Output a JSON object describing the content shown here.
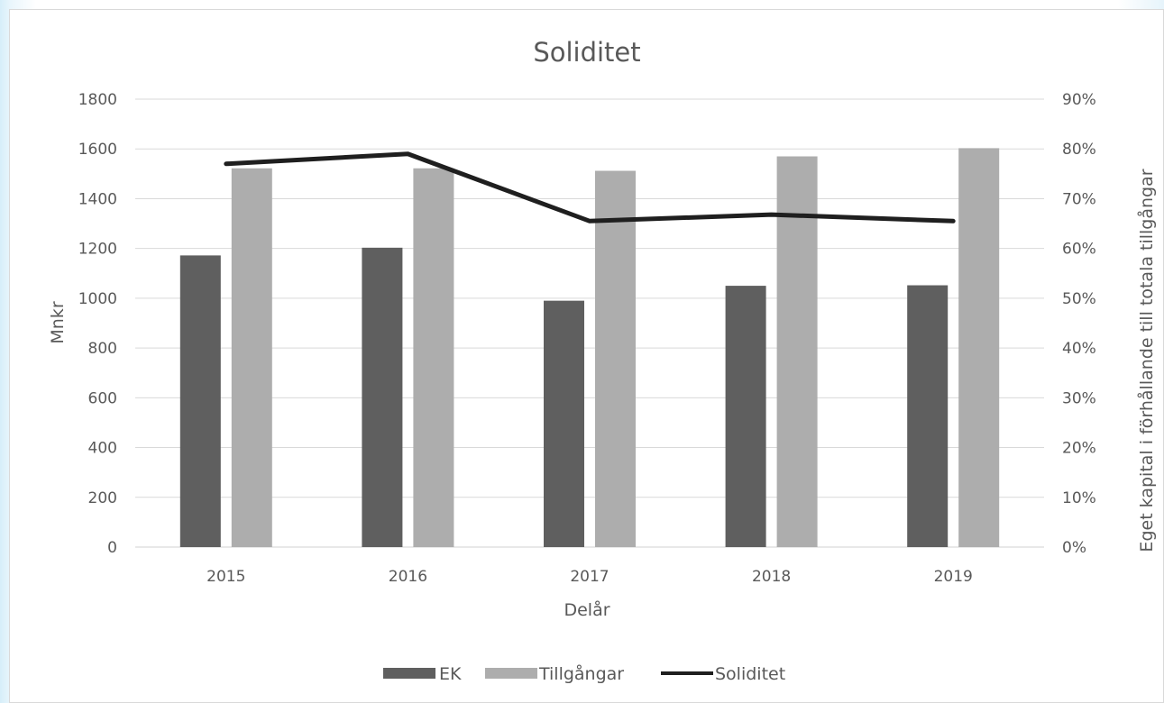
{
  "chart_data": {
    "type": "bar",
    "title": "Soliditet",
    "xlabel": "Delår",
    "ylabel": "Mnkr",
    "y2label": "Eget kapital i förhållande till totala tillgångar",
    "categories": [
      "2015",
      "2016",
      "2017",
      "2018",
      "2019"
    ],
    "ylim": [
      0,
      1800
    ],
    "yticks": [
      "0",
      "200",
      "400",
      "600",
      "800",
      "1000",
      "1200",
      "1400",
      "1600",
      "1800"
    ],
    "y2lim": [
      0,
      0.9
    ],
    "y2ticks": [
      "0%",
      "10%",
      "20%",
      "30%",
      "40%",
      "50%",
      "60%",
      "70%",
      "80%",
      "90%"
    ],
    "series": [
      {
        "name": "EK",
        "type": "bar",
        "axis": "left",
        "color": "#5f5f5f",
        "values": [
          1172,
          1203,
          990,
          1050,
          1052
        ]
      },
      {
        "name": "Tillgångar",
        "type": "bar",
        "axis": "left",
        "color": "#adadad",
        "values": [
          1522,
          1522,
          1512,
          1570,
          1603
        ]
      },
      {
        "name": "Soliditet",
        "type": "line",
        "axis": "right",
        "color": "#1f1f1f",
        "values": [
          0.77,
          0.79,
          0.655,
          0.668,
          0.655
        ]
      }
    ],
    "grid": true,
    "legend_position": "bottom"
  }
}
